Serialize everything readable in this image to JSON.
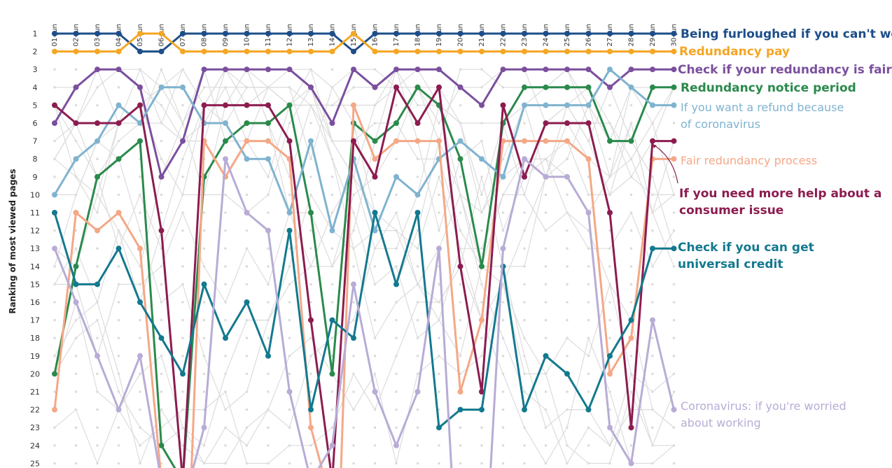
{
  "chart_data": {
    "type": "line",
    "chart_kind": "bump",
    "ylabel": "Ranking of most viewed pages",
    "xlabel": "",
    "y_reversed": true,
    "ylim": [
      1,
      25
    ],
    "y_ticks": [
      "1",
      "2",
      "3",
      "4",
      "5",
      "6",
      "7",
      "8",
      "9",
      "10",
      "11",
      "12",
      "13",
      "14",
      "15",
      "16",
      "17",
      "18",
      "19",
      "20",
      "21",
      "22",
      "23",
      "24",
      "25"
    ],
    "x": [
      "01-Jun",
      "02-Jun",
      "03-Jun",
      "04-Jun",
      "05-Jun",
      "06-Jun",
      "07-Jun",
      "08-Jun",
      "09-Jun",
      "10-Jun",
      "11-Jun",
      "12-Jun",
      "13-Jun",
      "14-Jun",
      "15-Jun",
      "16-Jun",
      "17-Jun",
      "18-Jun",
      "19-Jun",
      "20-Jun",
      "21-Jun",
      "22-Jun",
      "23-Jun",
      "24-Jun",
      "25-Jun",
      "26-Jun",
      "27-Jun",
      "28-Jun",
      "29-Jun",
      "30-Jun"
    ],
    "background_series_color": "#dcdcdc",
    "series": [
      {
        "name": "Being furloughed if you can't work",
        "color": "#1d4e89",
        "label_weight": "bold",
        "values": [
          1,
          1,
          1,
          1,
          2,
          2,
          1,
          1,
          1,
          1,
          1,
          1,
          1,
          1,
          2,
          1,
          1,
          1,
          1,
          1,
          1,
          1,
          1,
          1,
          1,
          1,
          1,
          1,
          1,
          1
        ]
      },
      {
        "name": "Redundancy pay",
        "color": "#f5a623",
        "label_weight": "bold",
        "values": [
          2,
          2,
          2,
          2,
          1,
          1,
          2,
          2,
          2,
          2,
          2,
          2,
          2,
          2,
          1,
          2,
          2,
          2,
          2,
          2,
          2,
          2,
          2,
          2,
          2,
          2,
          2,
          2,
          2,
          2
        ]
      },
      {
        "name": "Check if your redundancy is fair",
        "color": "#7b4f9e",
        "label_weight": "bold",
        "values": [
          6,
          4,
          3,
          3,
          4,
          9,
          7,
          3,
          3,
          3,
          3,
          3,
          4,
          6,
          3,
          4,
          3,
          3,
          3,
          4,
          5,
          3,
          3,
          3,
          3,
          3,
          4,
          3,
          3,
          3
        ]
      },
      {
        "name": "Redundancy notice period",
        "color": "#2a8a4c",
        "label_weight": "bold",
        "values": [
          20,
          14,
          9,
          8,
          7,
          24,
          26,
          9,
          7,
          6,
          6,
          5,
          11,
          20,
          6,
          7,
          6,
          4,
          5,
          8,
          14,
          6,
          4,
          4,
          4,
          4,
          7,
          7,
          4,
          4
        ]
      },
      {
        "name": "If you want a refund because of coronavirus",
        "color": "#7fb3cf",
        "label_weight": "normal",
        "values": [
          10,
          8,
          7,
          5,
          6,
          4,
          4,
          6,
          6,
          8,
          8,
          11,
          7,
          12,
          8,
          12,
          9,
          10,
          8,
          7,
          8,
          9,
          5,
          5,
          5,
          5,
          3,
          4,
          5,
          5
        ]
      },
      {
        "name": "Fair redundancy process",
        "color": "#f4a886",
        "label_weight": "normal",
        "values": [
          22,
          11,
          12,
          11,
          13,
          26,
          null,
          7,
          9,
          7,
          7,
          8,
          23,
          null,
          5,
          8,
          7,
          7,
          7,
          21,
          17,
          7,
          7,
          7,
          7,
          8,
          20,
          18,
          8,
          8
        ]
      },
      {
        "name": "If you need more help about a consumer issue",
        "color": "#8c1c4f",
        "label_weight": "bold",
        "values": [
          5,
          6,
          6,
          6,
          5,
          12,
          26,
          5,
          5,
          5,
          5,
          7,
          17,
          26,
          7,
          9,
          4,
          6,
          4,
          14,
          21,
          5,
          9,
          6,
          6,
          6,
          11,
          23,
          7,
          7
        ]
      },
      {
        "name": "Check if you can get universal credit",
        "color": "#13798e",
        "label_weight": "bold",
        "values": [
          11,
          15,
          15,
          13,
          16,
          18,
          20,
          15,
          18,
          16,
          19,
          12,
          22,
          17,
          18,
          11,
          15,
          11,
          23,
          22,
          22,
          14,
          22,
          19,
          20,
          22,
          19,
          17,
          13,
          13
        ]
      },
      {
        "name": "Coronavirus: if you're worried about working",
        "color": "#b8acd6",
        "label_weight": "normal",
        "values": [
          13,
          16,
          19,
          22,
          19,
          26,
          null,
          23,
          8,
          11,
          12,
          21,
          26,
          24,
          15,
          21,
          24,
          21,
          13,
          null,
          null,
          13,
          8,
          9,
          9,
          11,
          23,
          25,
          17,
          22
        ]
      }
    ],
    "label_lines": [
      [
        "Being furloughed if you can't work"
      ],
      [
        "Redundancy pay"
      ],
      [
        "Check if your redundancy is fair"
      ],
      [
        "Redundancy notice period"
      ],
      [
        "If you want a refund because",
        "of coronavirus"
      ],
      [
        "Fair redundancy process"
      ],
      [
        "If you need more help about a",
        "consumer issue"
      ],
      [
        "Check if you can get",
        "universal credit"
      ],
      [
        "Coronavirus: if you're worried",
        "about working"
      ]
    ]
  }
}
